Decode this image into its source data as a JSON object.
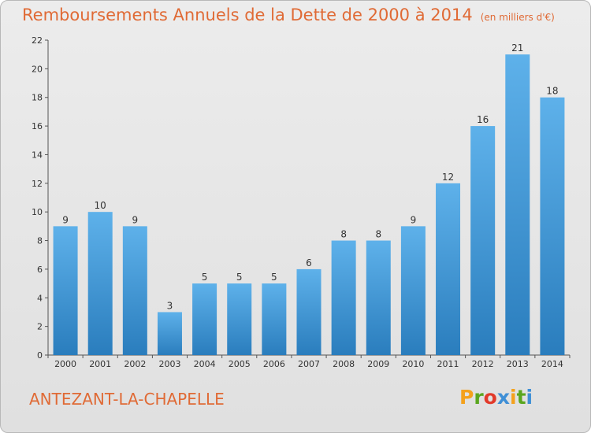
{
  "chart_data": {
    "type": "bar",
    "title": "Remboursements Annuels de la Dette de 2000 à 2014",
    "subtitle": "(en milliers d'€)",
    "categories": [
      "2000",
      "2001",
      "2002",
      "2003",
      "2004",
      "2005",
      "2006",
      "2007",
      "2008",
      "2009",
      "2010",
      "2011",
      "2012",
      "2013",
      "2014"
    ],
    "values": [
      9,
      10,
      9,
      3,
      5,
      5,
      5,
      6,
      8,
      8,
      9,
      12,
      16,
      21,
      18
    ],
    "ylim": [
      0,
      22
    ],
    "yticks": [
      0,
      2,
      4,
      6,
      8,
      10,
      12,
      14,
      16,
      18,
      20,
      22
    ],
    "xlabel": "",
    "ylabel": "",
    "grid": false
  },
  "footer": {
    "town": "ANTEZANT-LA-CHAPELLE",
    "logo_letters": [
      "P",
      "r",
      "o",
      "x",
      "i",
      "t",
      "i"
    ],
    "logo_colors": [
      "#f4a11c",
      "#5aa61f",
      "#e23a2a",
      "#3f8fd6",
      "#f4a11c",
      "#5aa61f",
      "#3f8fd6"
    ]
  },
  "colors": {
    "accent": "#e06a35",
    "bar_top": "#5eb1ea",
    "bar_bottom": "#2a7dbd"
  }
}
